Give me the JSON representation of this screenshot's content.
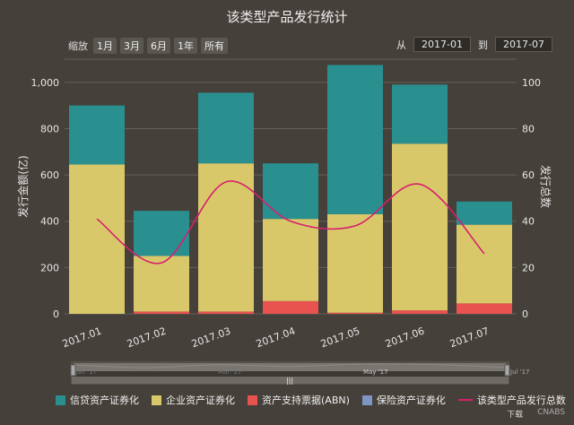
{
  "title": "该类型产品发行统计",
  "zoom": {
    "label": "缩放",
    "buttons": [
      "1月",
      "3月",
      "6月",
      "1年",
      "所有"
    ]
  },
  "range": {
    "from_label": "从",
    "from_value": "2017-01",
    "to_label": "到",
    "to_value": "2017-07"
  },
  "navigator": {
    "labels": [
      "Jan '17",
      "Mar '17",
      "May '17",
      "Jul '17"
    ]
  },
  "footer": {
    "download": "下载",
    "credit": "CNABS"
  },
  "colors": {
    "credit": "#2a8f8f",
    "corporate": "#d9c86a",
    "abn": "#e8524f",
    "insurance": "#7f96c4",
    "line": "#d6206e"
  },
  "chart_data": {
    "type": "bar",
    "categories": [
      "2017.01",
      "2017.02",
      "2017.03",
      "2017.04",
      "2017.05",
      "2017.06",
      "2017.07"
    ],
    "stacked": true,
    "ylabel": "发行金额(亿)",
    "y2label": "发行总数",
    "ylim": [
      0,
      1100
    ],
    "y2lim": [
      0,
      110
    ],
    "yticks": [
      "0",
      "200",
      "400",
      "600",
      "800",
      "1,000"
    ],
    "y2ticks": [
      "0",
      "20",
      "40",
      "60",
      "80",
      "100"
    ],
    "series": [
      {
        "name": "信贷资产证券化",
        "type": "bar",
        "values": [
          255,
          195,
          305,
          240,
          645,
          255,
          100
        ]
      },
      {
        "name": "企业资产证券化",
        "type": "bar",
        "values": [
          645,
          240,
          640,
          355,
          425,
          720,
          340
        ]
      },
      {
        "name": "资产支持票据(ABN)",
        "type": "bar",
        "values": [
          0,
          10,
          10,
          55,
          5,
          15,
          45
        ]
      },
      {
        "name": "保险资产证券化",
        "type": "bar",
        "values": [
          0,
          0,
          0,
          0,
          0,
          0,
          0
        ]
      },
      {
        "name": "该类型产品发行总数",
        "type": "line",
        "axis": "right",
        "values": [
          41,
          22,
          57,
          40,
          38,
          56,
          26
        ]
      }
    ],
    "legend": "bottom",
    "grid": true
  }
}
